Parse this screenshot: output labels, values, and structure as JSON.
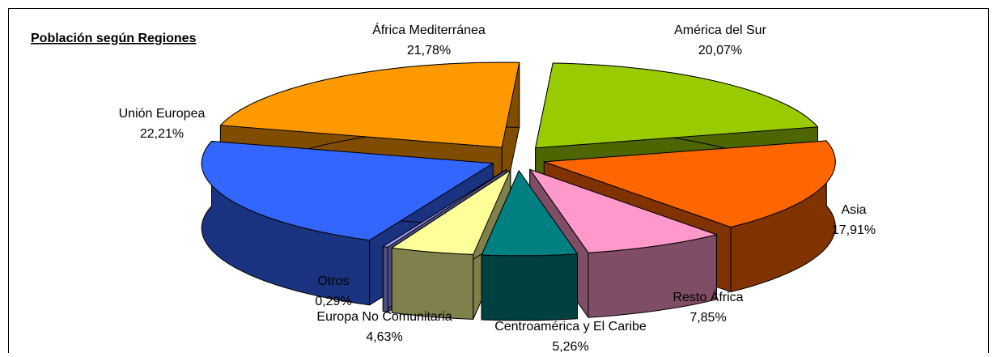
{
  "chart_data": {
    "type": "pie3d",
    "title": "Población según Regiones",
    "categories": [
      "América del Sur",
      "Asia",
      "Resto África",
      "Centroamérica y El Caribe",
      "Europa No Comunitaria",
      "Otros",
      "Unión Europea",
      "África Mediterránea"
    ],
    "values": [
      20.07,
      17.91,
      7.85,
      5.26,
      4.63,
      0.29,
      22.21,
      21.78
    ],
    "value_labels": [
      "20,07%",
      "17,91%",
      "7,85%",
      "5,26%",
      "4,63%",
      "0,29%",
      "22,21%",
      "21,78%"
    ],
    "colors": [
      "#99cc00",
      "#ff6600",
      "#ff99cc",
      "#008080",
      "#ffff99",
      "#9999ff",
      "#3366ff",
      "#ff9900"
    ]
  }
}
